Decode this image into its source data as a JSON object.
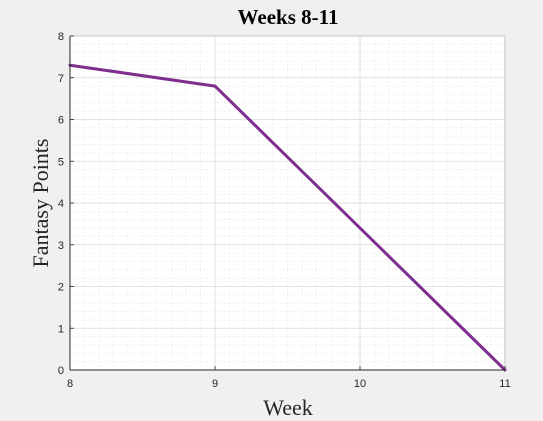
{
  "chart_data": {
    "type": "line",
    "title": "Weeks 8-11",
    "xlabel": "Week",
    "ylabel": "Fantasy Points",
    "xlim": [
      8,
      11
    ],
    "ylim": [
      0,
      8
    ],
    "xticks": [
      8,
      9,
      10,
      11
    ],
    "yticks": [
      0,
      1,
      2,
      3,
      4,
      5,
      6,
      7,
      8
    ],
    "xtick_labels": [
      "8",
      "9",
      "10",
      "11"
    ],
    "ytick_labels": [
      "0",
      "1",
      "2",
      "3",
      "4",
      "5",
      "6",
      "7",
      "8"
    ],
    "grid": true,
    "minor_grid": true,
    "series": [
      {
        "x": [
          8,
          9,
          11
        ],
        "values": [
          7.3,
          6.8,
          0
        ],
        "color": "#7e2f8e"
      }
    ]
  }
}
